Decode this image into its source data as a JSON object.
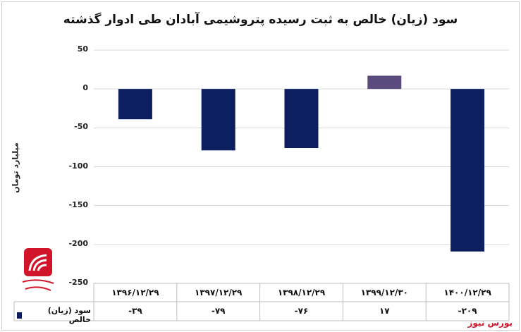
{
  "chart_data": {
    "type": "bar",
    "title": "سود (زیان) خالص به ثبت رسیده پتروشیمی آبادان طی ادوار گذشته",
    "ylabel": "میلیارد تومان",
    "ylim": [
      -250,
      50
    ],
    "yticks": [
      50,
      0,
      -50,
      -100,
      -150,
      -200,
      -250
    ],
    "ytick_labels": [
      "50",
      "0",
      "-50",
      "-100",
      "-150",
      "-200",
      "-250"
    ],
    "categories": [
      "۱۳۹۶/۱۲/۲۹",
      "۱۳۹۷/۱۲/۲۹",
      "۱۳۹۸/۱۲/۲۹",
      "۱۳۹۹/۱۲/۳۰",
      "۱۴۰۰/۱۲/۲۹"
    ],
    "series": [
      {
        "name": "سود (زیان) خالص",
        "values": [
          -39,
          -79,
          -76,
          17,
          -209
        ],
        "value_labels": [
          "-۳۹",
          "-۷۹",
          "-۷۶",
          "۱۷",
          "-۲۰۹"
        ]
      }
    ],
    "colors": {
      "negative": "#0d1f5e",
      "positive": "#5b4a7e",
      "grid": "#d9d9d9"
    },
    "grid": true,
    "legend": "data-table-row"
  },
  "watermark": "بورس نیوز",
  "logo_icon": "bourse-news-logo"
}
